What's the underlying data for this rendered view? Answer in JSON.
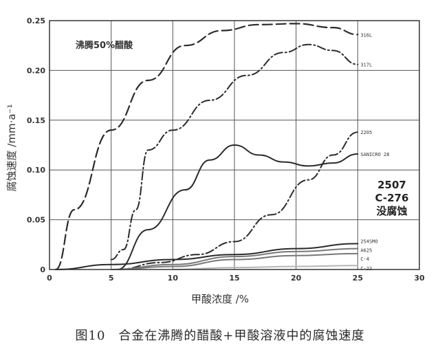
{
  "chart_data": {
    "type": "line",
    "annotation_title": "沸腾50%醋酸",
    "xlabel": "甲酸浓度 /%",
    "ylabel": "腐蚀速度 /mm·a⁻¹",
    "xlim": [
      0,
      30
    ],
    "ylim": [
      0,
      0.25
    ],
    "x_ticks": [
      "0",
      "5",
      "10",
      "15",
      "20",
      "25",
      "30"
    ],
    "y_ticks": [
      "0",
      "0.05",
      "0.10",
      "0.15",
      "0.20",
      "0.25"
    ],
    "grid": true,
    "series": [
      {
        "name": "316L",
        "style": "long-dash",
        "points": [
          [
            0.5,
            0
          ],
          [
            2,
            0.06
          ],
          [
            5,
            0.14
          ],
          [
            8,
            0.19
          ],
          [
            11,
            0.225
          ],
          [
            14,
            0.24
          ],
          [
            17,
            0.246
          ],
          [
            20,
            0.247
          ],
          [
            23,
            0.243
          ],
          [
            25,
            0.236
          ]
        ]
      },
      {
        "name": "317L",
        "style": "dash-dot",
        "points": [
          [
            5,
            0.01
          ],
          [
            6,
            0.02
          ],
          [
            7,
            0.06
          ],
          [
            8,
            0.12
          ],
          [
            10,
            0.14
          ],
          [
            13,
            0.17
          ],
          [
            16,
            0.195
          ],
          [
            19,
            0.218
          ],
          [
            21,
            0.226
          ],
          [
            23,
            0.22
          ],
          [
            25,
            0.206
          ]
        ]
      },
      {
        "name": "SANICRO 28",
        "style": "solid",
        "points": [
          [
            5.5,
            0
          ],
          [
            8,
            0.04
          ],
          [
            11,
            0.08
          ],
          [
            13,
            0.11
          ],
          [
            15,
            0.125
          ],
          [
            17,
            0.115
          ],
          [
            19,
            0.108
          ],
          [
            21,
            0.104
          ],
          [
            23,
            0.107
          ],
          [
            25,
            0.116
          ]
        ]
      },
      {
        "name": "2205",
        "style": "dash-dot",
        "points": [
          [
            5.5,
            0
          ],
          [
            9,
            0.007
          ],
          [
            12,
            0.015
          ],
          [
            15,
            0.028
          ],
          [
            18,
            0.055
          ],
          [
            21,
            0.09
          ],
          [
            23,
            0.115
          ],
          [
            25,
            0.138
          ]
        ]
      },
      {
        "name": "254SMO",
        "style": "solid",
        "points": [
          [
            0.5,
            0
          ],
          [
            5,
            0.005
          ],
          [
            10,
            0.01
          ],
          [
            15,
            0.015
          ],
          [
            20,
            0.021
          ],
          [
            25,
            0.026
          ]
        ]
      },
      {
        "name": "A625",
        "style": "solid",
        "points": [
          [
            5,
            0
          ],
          [
            10,
            0.005
          ],
          [
            15,
            0.013
          ],
          [
            20,
            0.018
          ],
          [
            25,
            0.021
          ]
        ]
      },
      {
        "name": "C-4",
        "style": "solid",
        "points": [
          [
            5,
            0
          ],
          [
            10,
            0.003
          ],
          [
            15,
            0.01
          ],
          [
            20,
            0.014
          ],
          [
            25,
            0.016
          ]
        ]
      },
      {
        "name": "C-22",
        "style": "solid",
        "points": [
          [
            10,
            0
          ],
          [
            15,
            0.002
          ],
          [
            20,
            0.003
          ],
          [
            25,
            0.004
          ]
        ]
      }
    ],
    "no_corrosion_note": [
      "2507",
      "C-276",
      "没腐蚀"
    ]
  },
  "caption": "图10　合金在沸腾的醋酸+甲酸溶液中的腐蚀速度"
}
